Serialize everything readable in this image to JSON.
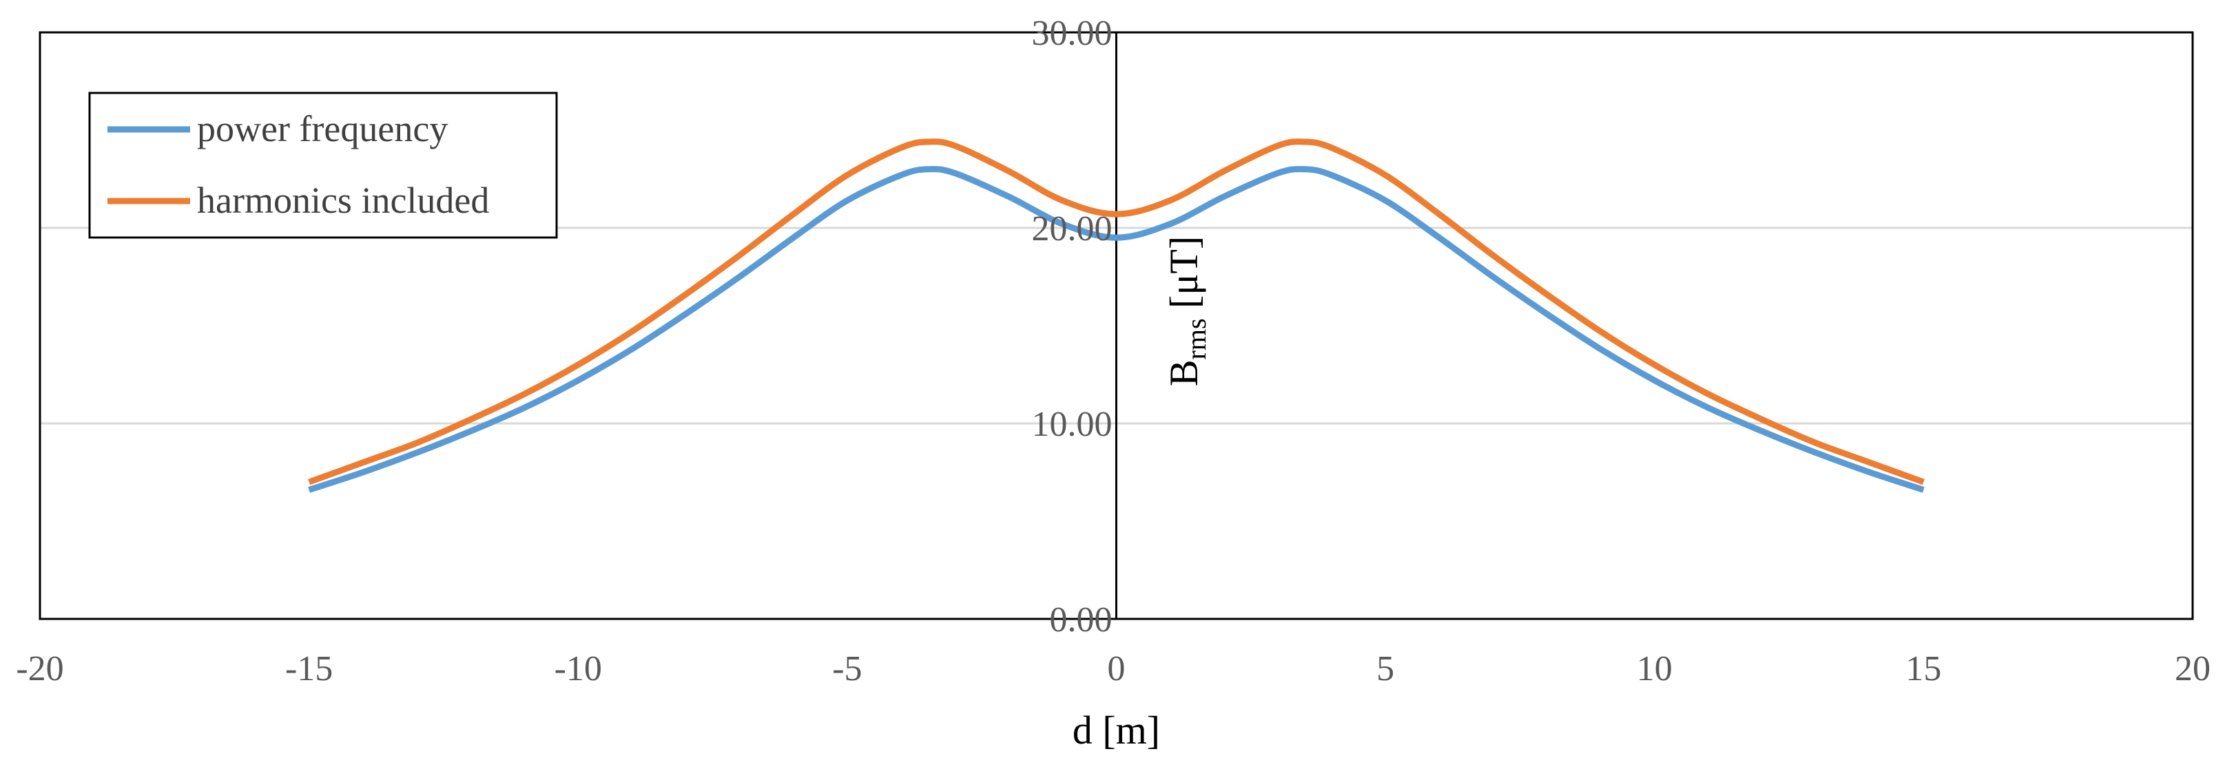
{
  "chart_data": {
    "type": "line",
    "title": "",
    "xlabel": "d [m]",
    "ylabel": {
      "main": "B",
      "subscript": "rms",
      "unit": " [μT]"
    },
    "xlim": [
      -20,
      20
    ],
    "ylim": [
      0,
      30
    ],
    "x_ticks": [
      "-20",
      "-15",
      "-10",
      "-5",
      "0",
      "5",
      "10",
      "15",
      "20"
    ],
    "y_ticks": [
      "0.00",
      "10.00",
      "20.00",
      "30.00"
    ],
    "x_tick_values": [
      -20,
      -15,
      -10,
      -5,
      0,
      5,
      10,
      15,
      20
    ],
    "y_tick_values": [
      0,
      10,
      20,
      30
    ],
    "gridlines": "horizontal",
    "legend_position": "top-left",
    "x": [
      -15,
      -14,
      -13,
      -12,
      -11,
      -10,
      -9,
      -8,
      -7,
      -6,
      -5,
      -4,
      -3.5,
      -3,
      -2,
      -1,
      0,
      1,
      2,
      3,
      3.5,
      4,
      5,
      6,
      7,
      8,
      9,
      10,
      11,
      12,
      13,
      14,
      15
    ],
    "series": [
      {
        "name": "power frequency",
        "color": "#5B9BD5",
        "values": [
          6.6,
          7.5,
          8.5,
          9.6,
          10.8,
          12.2,
          13.8,
          15.6,
          17.5,
          19.5,
          21.4,
          22.7,
          23.0,
          22.8,
          21.6,
          20.2,
          19.5,
          20.2,
          21.6,
          22.8,
          23.0,
          22.7,
          21.4,
          19.5,
          17.5,
          15.6,
          13.8,
          12.2,
          10.8,
          9.6,
          8.5,
          7.5,
          6.6
        ]
      },
      {
        "name": "harmonics included",
        "color": "#ED7D31",
        "values": [
          7.0,
          8.0,
          9.0,
          10.2,
          11.5,
          13.0,
          14.7,
          16.6,
          18.6,
          20.7,
          22.7,
          24.1,
          24.4,
          24.2,
          22.9,
          21.4,
          20.7,
          21.4,
          22.9,
          24.2,
          24.4,
          24.1,
          22.7,
          20.7,
          18.6,
          16.6,
          14.7,
          13.0,
          11.5,
          10.2,
          9.0,
          8.0,
          7.0
        ]
      }
    ]
  }
}
